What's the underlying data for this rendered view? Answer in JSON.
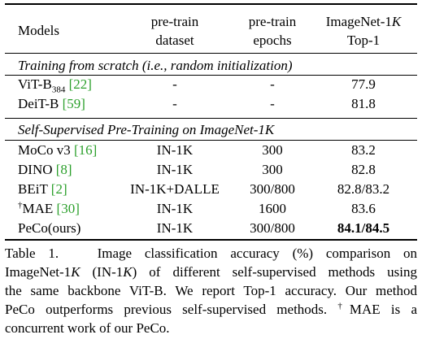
{
  "table": {
    "header": {
      "models": "Models",
      "dataset": [
        "pre-train",
        "dataset"
      ],
      "epochs": [
        "pre-train",
        "epochs"
      ],
      "top1": [
        "ImageNet-1",
        "K",
        "Top-1"
      ]
    },
    "sections": [
      {
        "title": "Training from scratch (i.e., random initialization)",
        "rows": [
          {
            "model": "ViT-B",
            "model_sub": "384",
            "cite": "[22]",
            "dataset": "-",
            "epochs": "-",
            "top1": "77.9"
          },
          {
            "model": "DeiT-B",
            "cite": "[59]",
            "dataset": "-",
            "epochs": "-",
            "top1": "81.8"
          }
        ]
      },
      {
        "title": "Self-Supervised Pre-Training on ImageNet-1K",
        "rows": [
          {
            "model": "MoCo v3",
            "cite": "[16]",
            "dataset": "IN-1K",
            "epochs": "300",
            "top1": "83.2"
          },
          {
            "model": "DINO",
            "cite": "[8]",
            "dataset": "IN-1K",
            "epochs": "300",
            "top1": "82.8"
          },
          {
            "model": "BEiT",
            "cite": "[2]",
            "dataset": "IN-1K+DALLE",
            "epochs": "300/800",
            "top1": "82.8/83.2"
          },
          {
            "model_sup": "†",
            "model": "MAE",
            "cite": "[30]",
            "dataset": "IN-1K",
            "epochs": "1600",
            "top1": "83.6"
          },
          {
            "model": "PeCo(ours)",
            "dataset": "IN-1K",
            "epochs": "300/800",
            "top1": "84.1/84.5"
          }
        ]
      }
    ]
  },
  "caption": {
    "lines": [
      [
        "Table 1.",
        "Image classification accuracy (%) comparison on"
      ],
      [
        "ImageNet-1",
        "K",
        " (IN-1",
        "K",
        ") of different self-supervised methods using"
      ],
      [
        "the same backbone ViT-B. We report Top-1 accuracy. Our method"
      ],
      [
        "PeCo outperforms previous self-supervised methods. ",
        "†",
        "MAE is a"
      ],
      [
        "concurrent work of our PeCo."
      ]
    ]
  }
}
